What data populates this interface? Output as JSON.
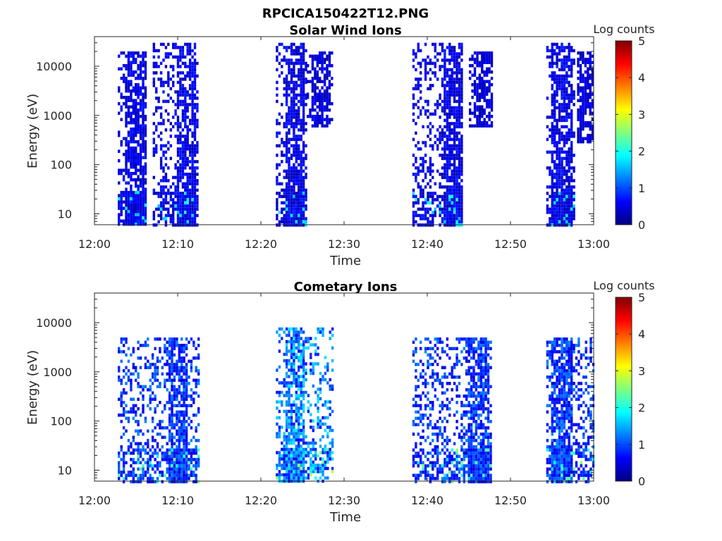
{
  "figure": {
    "title": "RPCICA150422T12.PNG"
  },
  "colorbar": {
    "label": "Log counts",
    "ticks": [
      "0",
      "1",
      "2",
      "3",
      "4",
      "5"
    ],
    "range": [
      0,
      5
    ],
    "colormap": "jet",
    "colors": [
      "#00007f",
      "#0000ff",
      "#007fff",
      "#00ffff",
      "#7fff7f",
      "#ffff00",
      "#ff7f00",
      "#ff0000",
      "#7f0000"
    ]
  },
  "chart_data": [
    {
      "type": "heatmap",
      "title": "Solar Wind Ions",
      "xlabel": "Time",
      "ylabel": "Energy (eV)",
      "x_tick_labels": [
        "12:00",
        "12:10",
        "12:20",
        "12:30",
        "12:40",
        "12:50",
        "13:00"
      ],
      "x_ticks_min": [
        0,
        10,
        20,
        30,
        40,
        50,
        60
      ],
      "xlim_min": [
        0,
        60
      ],
      "y_scale": "log",
      "y_tick_labels": [
        "10",
        "100",
        "1000",
        "10000"
      ],
      "y_ticks": [
        10,
        100,
        1000,
        10000
      ],
      "ylim": [
        6,
        40000
      ],
      "bursts": [
        {
          "start_min": 2.8,
          "end_min": 6.0,
          "emin": 6,
          "emax": 20000,
          "core_min": 4.8,
          "level": 0.6
        },
        {
          "start_min": 7.0,
          "end_min": 12.5,
          "emin": 6,
          "emax": 30000,
          "core_min": 11.0,
          "level": 0.6
        },
        {
          "start_min": 21.8,
          "end_min": 25.5,
          "emin": 6,
          "emax": 30000,
          "core_min": 24.0,
          "level": 0.6
        },
        {
          "start_min": 25.5,
          "end_min": 28.5,
          "emin": 600,
          "emax": 20000,
          "core_min": 27.0,
          "level": 0.5
        },
        {
          "start_min": 38.2,
          "end_min": 44.0,
          "emin": 6,
          "emax": 30000,
          "core_min": 43.0,
          "level": 0.6
        },
        {
          "start_min": 45.0,
          "end_min": 47.7,
          "emin": 600,
          "emax": 20000,
          "core_min": 46.5,
          "level": 0.5
        },
        {
          "start_min": 54.3,
          "end_min": 57.5,
          "emin": 6,
          "emax": 30000,
          "core_min": 56.0,
          "level": 0.6
        },
        {
          "start_min": 58.0,
          "end_min": 60.0,
          "emin": 300,
          "emax": 20000,
          "core_min": 59.0,
          "level": 0.5
        }
      ]
    },
    {
      "type": "heatmap",
      "title": "Cometary Ions",
      "xlabel": "Time",
      "ylabel": "Energy (eV)",
      "x_tick_labels": [
        "12:00",
        "12:10",
        "12:20",
        "12:30",
        "12:40",
        "12:50",
        "13:00"
      ],
      "x_ticks_min": [
        0,
        10,
        20,
        30,
        40,
        50,
        60
      ],
      "xlim_min": [
        0,
        60
      ],
      "y_scale": "log",
      "y_tick_labels": [
        "10",
        "100",
        "1000",
        "10000"
      ],
      "y_ticks": [
        10,
        100,
        1000,
        10000
      ],
      "ylim": [
        6,
        40000
      ],
      "bursts": [
        {
          "start_min": 2.8,
          "end_min": 12.5,
          "emin": 6,
          "emax": 5000,
          "core_min": 10.0,
          "level": 1.0
        },
        {
          "start_min": 21.8,
          "end_min": 28.5,
          "emin": 6,
          "emax": 8000,
          "core_min": 24.0,
          "level": 1.4
        },
        {
          "start_min": 38.2,
          "end_min": 47.7,
          "emin": 6,
          "emax": 5000,
          "core_min": 46.0,
          "level": 1.0
        },
        {
          "start_min": 54.3,
          "end_min": 60.0,
          "emin": 6,
          "emax": 5000,
          "core_min": 56.0,
          "level": 1.0
        }
      ]
    }
  ]
}
